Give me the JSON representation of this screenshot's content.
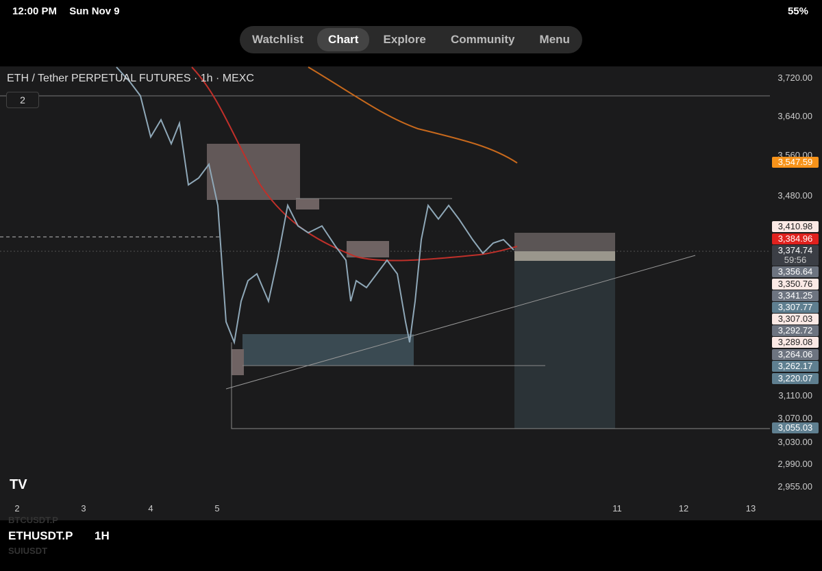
{
  "status_bar": {
    "time": "12:00 PM",
    "date": "Sun Nov 9",
    "battery": "55%"
  },
  "nav_tabs": [
    "Watchlist",
    "Chart",
    "Explore",
    "Community",
    "Menu"
  ],
  "chart": {
    "title": "ETH / Tether PERPETUAL FUTURES · 1h · MEXC",
    "indicator_count": "2",
    "price_axis": [
      "3,720.00",
      "3,640.00",
      "3,560.00",
      "3,480.00",
      "3,110.00",
      "3,070.00",
      "3,030.00",
      "2,990.00",
      "2,955.00"
    ],
    "price_badges": [
      "3,547.59",
      "3,410.98",
      "3,384.96",
      "3,374.74",
      "59:56",
      "3,356.64",
      "3,350.76",
      "3,341.25",
      "3,307.77",
      "3,307.03",
      "3,292.72",
      "3,289.08",
      "3,264.06",
      "3,262.17",
      "3,220.07",
      "3,055.03"
    ],
    "time_axis": [
      "2",
      "3",
      "4",
      "5",
      "11",
      "12",
      "13"
    ]
  },
  "bottom_bar": {
    "symbol": "ETHUSDT.P",
    "interval": "1H",
    "list_above": "BTCUSDT.P",
    "list_below": "SUIUSDT"
  }
}
